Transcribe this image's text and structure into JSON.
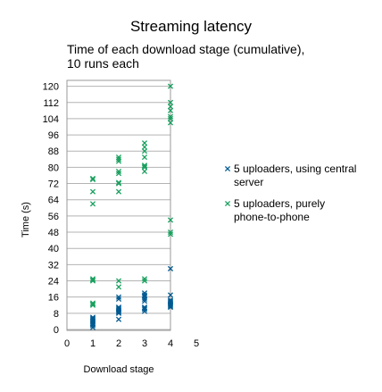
{
  "chart_data": {
    "type": "scatter",
    "title": "Streaming latency",
    "subtitle": [
      "Time of each download stage (cumulative),",
      "10 runs each"
    ],
    "xlabel": "Download stage",
    "ylabel": "Time (s)",
    "xlim": [
      0,
      5
    ],
    "ylim": [
      0,
      122
    ],
    "xticks": [
      "0",
      "1",
      "2",
      "3",
      "4",
      "5"
    ],
    "yticks": [
      "0",
      "8",
      "16",
      "24",
      "32",
      "40",
      "48",
      "56",
      "64",
      "72",
      "80",
      "88",
      "96",
      "104",
      "112",
      "120"
    ],
    "grid": true,
    "legend_position": "right",
    "series": [
      {
        "name_lines": [
          "5 uploaders, using central",
          "server"
        ],
        "color": "#005a91",
        "marker": "x",
        "points": [
          [
            1,
            1
          ],
          [
            1,
            2
          ],
          [
            1,
            2.5
          ],
          [
            1,
            3
          ],
          [
            1,
            3.5
          ],
          [
            1,
            4
          ],
          [
            1,
            4.5
          ],
          [
            1,
            5
          ],
          [
            1,
            5.5
          ],
          [
            1,
            6
          ],
          [
            2,
            8
          ],
          [
            2,
            8.5
          ],
          [
            2,
            9
          ],
          [
            2,
            9.5
          ],
          [
            2,
            10
          ],
          [
            2,
            10.5
          ],
          [
            2,
            11
          ],
          [
            2,
            15
          ],
          [
            2,
            16
          ],
          [
            2,
            5
          ],
          [
            3,
            9
          ],
          [
            3,
            10
          ],
          [
            3,
            11
          ],
          [
            3,
            14
          ],
          [
            3,
            15
          ],
          [
            3,
            16
          ],
          [
            3,
            17
          ],
          [
            3,
            18
          ],
          [
            3,
            10.5
          ],
          [
            3,
            16.5
          ],
          [
            4,
            11
          ],
          [
            4,
            12
          ],
          [
            4,
            12.5
          ],
          [
            4,
            13
          ],
          [
            4,
            13.5
          ],
          [
            4,
            14
          ],
          [
            4,
            17
          ],
          [
            4,
            30
          ],
          [
            4,
            11.5
          ],
          [
            4,
            14.5
          ]
        ]
      },
      {
        "name_lines": [
          "5 uploaders, purely",
          "phone-to-phone"
        ],
        "color": "#1aa05f",
        "marker": "x",
        "points": [
          [
            1,
            12
          ],
          [
            1,
            13
          ],
          [
            1,
            24
          ],
          [
            1,
            25
          ],
          [
            1,
            62
          ],
          [
            1,
            68
          ],
          [
            1,
            74
          ],
          [
            1,
            12.5
          ],
          [
            1,
            24.5
          ],
          [
            1,
            74.5
          ],
          [
            2,
            21
          ],
          [
            2,
            24
          ],
          [
            2,
            68
          ],
          [
            2,
            72
          ],
          [
            2,
            77
          ],
          [
            2,
            78
          ],
          [
            2,
            83
          ],
          [
            2,
            85
          ],
          [
            2,
            84
          ],
          [
            2,
            72.5
          ],
          [
            3,
            24
          ],
          [
            3,
            25
          ],
          [
            3,
            78
          ],
          [
            3,
            80
          ],
          [
            3,
            81
          ],
          [
            3,
            85
          ],
          [
            3,
            88
          ],
          [
            3,
            90
          ],
          [
            3,
            92
          ],
          [
            3,
            80.5
          ],
          [
            4,
            47
          ],
          [
            4,
            48
          ],
          [
            4,
            54
          ],
          [
            4,
            102
          ],
          [
            4,
            104
          ],
          [
            4,
            105
          ],
          [
            4,
            108
          ],
          [
            4,
            110
          ],
          [
            4,
            112
          ],
          [
            4,
            120
          ]
        ]
      }
    ]
  }
}
